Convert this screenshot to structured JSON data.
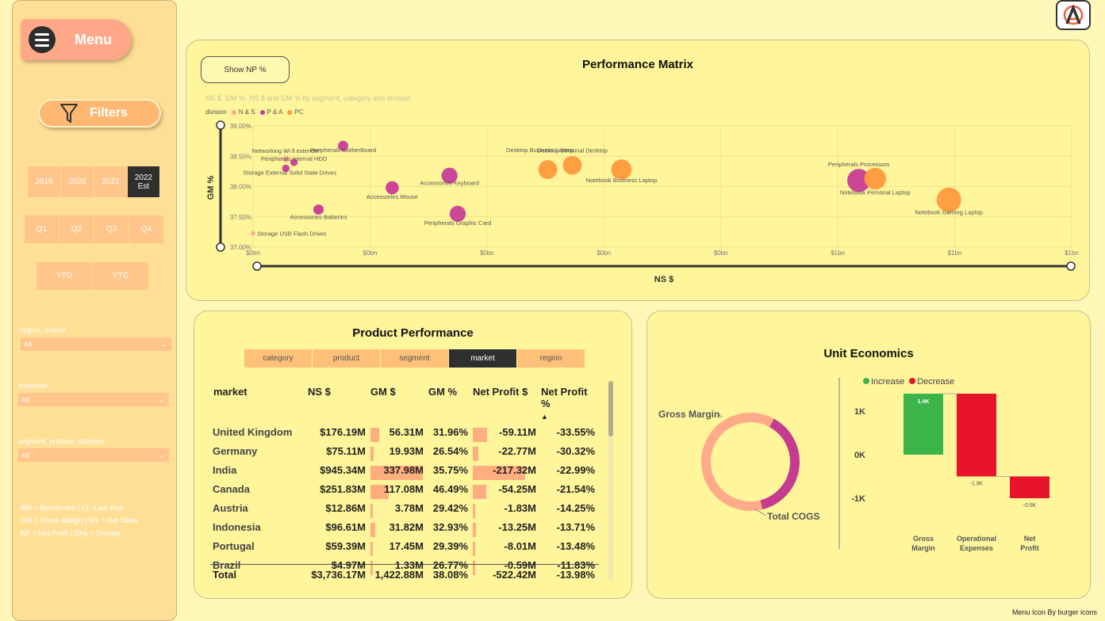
{
  "menu": {
    "label": "Menu"
  },
  "filters": {
    "label": "Filters"
  },
  "years": [
    {
      "label": "2019",
      "selected": false
    },
    {
      "label": "2020",
      "selected": false
    },
    {
      "label": "2021",
      "selected": false
    },
    {
      "label": "2022\nEst",
      "selected": true
    }
  ],
  "quarters": [
    "Q1",
    "Q2",
    "Q3",
    "Q4"
  ],
  "periods": [
    "YTD",
    "YTG"
  ],
  "slicers": [
    {
      "title": "region, market",
      "value": "All"
    },
    {
      "title": "customer",
      "value": "All"
    },
    {
      "title": "segment, product, category",
      "value": "All"
    }
  ],
  "notes": [
    "BM = Benchmark | LY=Last Year",
    "GM = Gross Margin | NS = Net Sales",
    "NP = Net Profit | Chg = Change"
  ],
  "performance_matrix": {
    "title": "Performance Matrix",
    "show_np_label": "Show NP %",
    "subtitle": "NS $, GM %, NS $ and GM % by segment, category and division",
    "legend_title": "division",
    "legend": [
      {
        "name": "N & S",
        "color": "#ffab8a"
      },
      {
        "name": "P & A",
        "color": "#c83c96"
      },
      {
        "name": "PC",
        "color": "#ff9a3c"
      }
    ],
    "ylabel": "GM %",
    "xlabel": "NS $",
    "y_ticks": [
      "39.00%",
      "38.50%",
      "38.00%",
      "37.50%",
      "37.00%"
    ],
    "x_ticks": [
      "$0bn",
      "$0bn",
      "$0bn",
      "$0bn",
      "$0bn",
      "$1bn",
      "$1bn",
      "$1bn"
    ]
  },
  "chart_data": [
    {
      "type": "scatter",
      "title": "Performance Matrix",
      "xlabel": "NS $",
      "ylabel": "GM %",
      "ylim": [
        37.0,
        39.0
      ],
      "xlim": [
        0,
        1.0
      ],
      "y_unit": "%",
      "x_unit": "$bn",
      "points": [
        {
          "label": "Networking Wi fi extender",
          "division": "N & S",
          "x": 0.04,
          "y": 38.45,
          "size": 2
        },
        {
          "label": "Peripherals Internal HDD",
          "division": "P & A",
          "x": 0.05,
          "y": 38.4,
          "size": 3
        },
        {
          "label": "Storage External Solid State Drives",
          "division": "P & A",
          "x": 0.04,
          "y": 38.3,
          "size": 3
        },
        {
          "label": "Peripherals MotherBoard",
          "division": "P & A",
          "x": 0.11,
          "y": 38.67,
          "size": 5
        },
        {
          "label": "Accessories Mouse",
          "division": "P & A",
          "x": 0.17,
          "y": 37.98,
          "size": 7
        },
        {
          "label": "Accessories Keyboard",
          "division": "P & A",
          "x": 0.24,
          "y": 38.18,
          "size": 9
        },
        {
          "label": "Accessories Batteries",
          "division": "P & A",
          "x": 0.08,
          "y": 37.62,
          "size": 5
        },
        {
          "label": "Peripherals Graphic Card",
          "division": "P & A",
          "x": 0.25,
          "y": 37.55,
          "size": 9
        },
        {
          "label": "Storage USB Flash Drives",
          "division": "N & S",
          "x": 0.0,
          "y": 37.23,
          "size": 1
        },
        {
          "label": "Desktop Business Laptop",
          "division": "PC",
          "x": 0.36,
          "y": 38.28,
          "size": 11
        },
        {
          "label": "Desktop Personal Desktop",
          "division": "PC",
          "x": 0.39,
          "y": 38.35,
          "size": 11
        },
        {
          "label": "Notebook Business Laptop",
          "division": "PC",
          "x": 0.45,
          "y": 38.28,
          "size": 12
        },
        {
          "label": "Peripherals Processors",
          "division": "P & A",
          "x": 0.74,
          "y": 38.1,
          "size": 14
        },
        {
          "label": "Notebook Personal Laptop",
          "division": "PC",
          "x": 0.76,
          "y": 38.13,
          "size": 13
        },
        {
          "label": "Notebook Gaming Laptop",
          "division": "PC",
          "x": 0.85,
          "y": 37.78,
          "size": 15
        }
      ]
    },
    {
      "type": "pie",
      "title": "Unit Economics",
      "slices": [
        {
          "name": "Gross Margin",
          "value": 38.08,
          "color": "#c43b8f"
        },
        {
          "name": "Total COGS",
          "value": 61.92,
          "color": "#ffab8a"
        }
      ]
    },
    {
      "type": "bar",
      "subtype": "waterfall",
      "categories": [
        "Gross Margin",
        "Operational Expenses",
        "Net Profit"
      ],
      "values": [
        1.4,
        -1.9,
        -0.5
      ],
      "data_labels": [
        "1.4K",
        "-1.9K",
        "-0.5K"
      ],
      "y_ticks": [
        "1K",
        "0K",
        "-1K"
      ],
      "ylim": [
        -1.5,
        1.5
      ],
      "legend": [
        {
          "name": "Increase",
          "color": "#3bb54a"
        },
        {
          "name": "Decrease",
          "color": "#e8132c"
        }
      ]
    }
  ],
  "product_performance": {
    "title": "Product Performance",
    "tabs": [
      {
        "label": "category",
        "selected": false
      },
      {
        "label": "product",
        "selected": false
      },
      {
        "label": "segment",
        "selected": false
      },
      {
        "label": "market",
        "selected": true
      },
      {
        "label": "region",
        "selected": false
      }
    ],
    "columns": [
      "market",
      "NS $",
      "GM $",
      "GM %",
      "Net Profit $",
      "Net Profit %"
    ],
    "rows": [
      {
        "market": "United Kingdom",
        "ns": "$176.19M",
        "gm": "56.31M",
        "gm_frac": 0.17,
        "gmp": "31.96%",
        "np": "-59.11M",
        "np_frac": 0.27,
        "npp": "-33.55%"
      },
      {
        "market": "Germany",
        "ns": "$75.11M",
        "gm": "19.93M",
        "gm_frac": 0.06,
        "gmp": "26.54%",
        "np": "-22.77M",
        "np_frac": 0.1,
        "npp": "-30.32%"
      },
      {
        "market": "India",
        "ns": "$945.34M",
        "gm": "337.98M",
        "gm_frac": 1.0,
        "gmp": "35.75%",
        "np": "-217.32M",
        "np_frac": 1.0,
        "npp": "-22.99%"
      },
      {
        "market": "Canada",
        "ns": "$251.83M",
        "gm": "117.08M",
        "gm_frac": 0.35,
        "gmp": "46.49%",
        "np": "-54.25M",
        "np_frac": 0.25,
        "npp": "-21.54%"
      },
      {
        "market": "Austria",
        "ns": "$12.86M",
        "gm": "3.78M",
        "gm_frac": 0.01,
        "gmp": "29.42%",
        "np": "-1.83M",
        "np_frac": 0.0,
        "npp": "-14.25%"
      },
      {
        "market": "Indonesia",
        "ns": "$96.61M",
        "gm": "31.82M",
        "gm_frac": 0.09,
        "gmp": "32.93%",
        "np": "-13.25M",
        "np_frac": 0.06,
        "npp": "-13.71%"
      },
      {
        "market": "Portugal",
        "ns": "$59.39M",
        "gm": "17.45M",
        "gm_frac": 0.05,
        "gmp": "29.39%",
        "np": "-8.01M",
        "np_frac": 0.04,
        "npp": "-13.48%"
      },
      {
        "market": "Brazil",
        "ns": "$4.97M",
        "gm": "1.33M",
        "gm_frac": 0.0,
        "gmp": "26.77%",
        "np": "-0.59M",
        "np_frac": 0.0,
        "npp": "-11.83%"
      }
    ],
    "total": {
      "label": "Total",
      "ns": "$3,736.17M",
      "gm": "1,422.88M",
      "gmp": "38.08%",
      "np": "-522.42M",
      "npp": "-13.98%"
    }
  },
  "unit_economics": {
    "title": "Unit Economics",
    "donut_labels": [
      "Gross Margin",
      "Total COGS"
    ],
    "legend": [
      "Increase",
      "Decrease"
    ]
  },
  "credit": "Menu Icon By burger icons"
}
